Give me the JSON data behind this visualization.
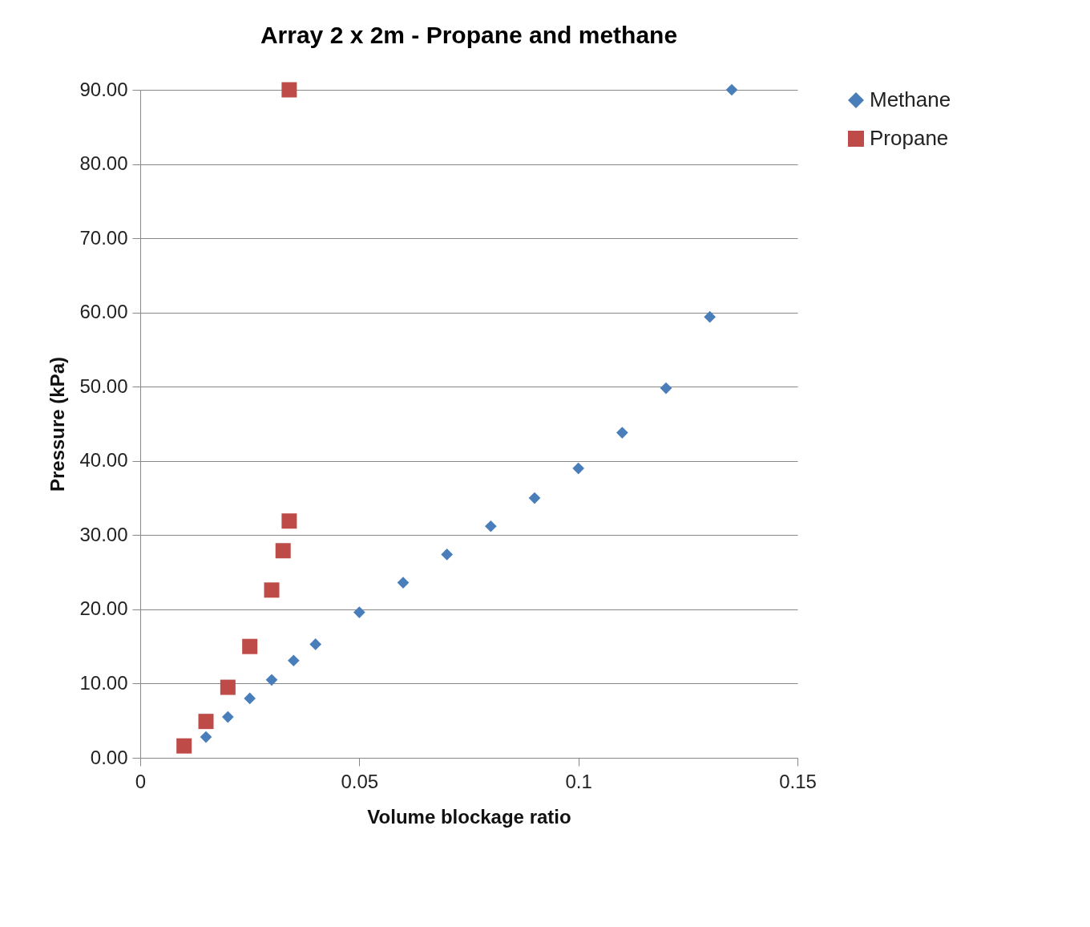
{
  "chart_data": {
    "type": "scatter",
    "title": "Array 2 x 2m - Propane  and methane",
    "xlabel": "Volume blockage ratio",
    "ylabel": "Pressure (kPa)",
    "xlim": [
      0,
      0.15
    ],
    "xticks": [
      0,
      0.05,
      0.1,
      0.15
    ],
    "ylim": [
      0,
      90
    ],
    "yticks": [
      {
        "value": 0,
        "label": "0.00"
      },
      {
        "value": 10,
        "label": "10.00"
      },
      {
        "value": 20,
        "label": "20.00"
      },
      {
        "value": 30,
        "label": "30.00"
      },
      {
        "value": 40,
        "label": "40.00"
      },
      {
        "value": 50,
        "label": "50.00"
      },
      {
        "value": 60,
        "label": "60.00"
      },
      {
        "value": 70,
        "label": "70.00"
      },
      {
        "value": 80,
        "label": "80.00"
      },
      {
        "value": 90,
        "label": "90.00"
      }
    ],
    "grid": "y",
    "legend": "right",
    "series": [
      {
        "name": "Methane",
        "color": "#4a7ebb",
        "marker": "diamond",
        "x": [
          0.015,
          0.02,
          0.025,
          0.03,
          0.035,
          0.04,
          0.05,
          0.06,
          0.07,
          0.08,
          0.09,
          0.1,
          0.11,
          0.12,
          0.13,
          0.135
        ],
        "values": [
          2.8,
          5.5,
          8.0,
          10.5,
          13.1,
          15.3,
          19.6,
          23.6,
          27.4,
          31.2,
          35.0,
          39.0,
          43.8,
          49.8,
          59.4,
          90
        ]
      },
      {
        "name": "Propane",
        "color": "#be4b48",
        "marker": "square",
        "x": [
          0.01,
          0.015,
          0.02,
          0.025,
          0.03,
          0.0326,
          0.034,
          0.034
        ],
        "values": [
          1.6,
          4.9,
          9.5,
          15.0,
          22.6,
          27.9,
          31.9,
          90
        ]
      }
    ]
  }
}
